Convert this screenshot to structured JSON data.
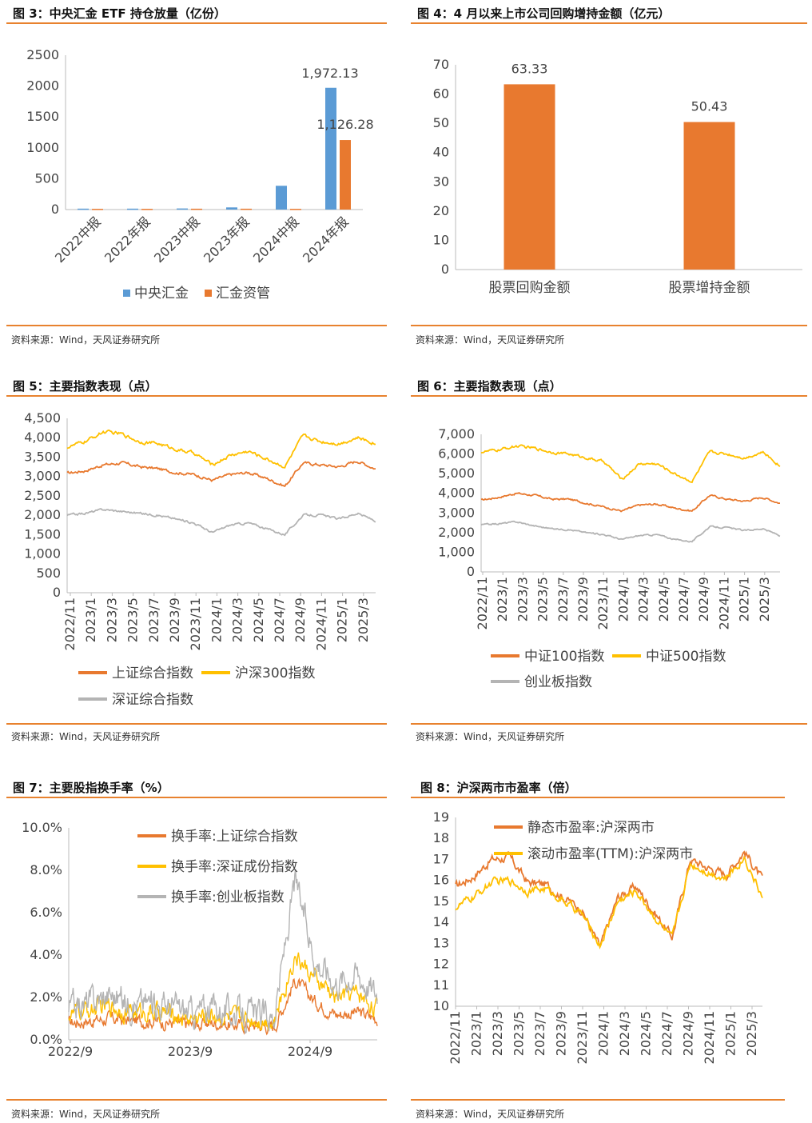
{
  "source_text": "资料来源：Wind，天风证券研究所",
  "colors": {
    "blue": "#5b9bd5",
    "orange": "#e8792f",
    "yellow": "#ffc000",
    "gray": "#b4b4b4",
    "rule": "#e8822e"
  },
  "charts": [
    {
      "id": "fig3",
      "title": "图 3：中央汇金 ETF 持仓放量（亿份）",
      "chart_data": {
        "type": "bar",
        "categories": [
          "2022中报",
          "2022年报",
          "2023中报",
          "2023年报",
          "2024中报",
          "2024年报"
        ],
        "series": [
          {
            "name": "中央汇金",
            "color": "#5b9bd5",
            "values": [
              15,
              15,
              18,
              35,
              385,
              1972.13
            ]
          },
          {
            "name": "汇金资管",
            "color": "#e8792f",
            "values": [
              12,
              12,
              14,
              14,
              12,
              1126.28
            ]
          }
        ],
        "data_labels": [
          "1,972.13",
          "1,126.28"
        ],
        "ylim": [
          0,
          2500
        ],
        "yticks": [
          "2500",
          "2000",
          "1500",
          "1000",
          "500",
          "0"
        ],
        "legend": "bottom"
      }
    },
    {
      "id": "fig4",
      "title": "图 4：4 月以来上市公司回购增持金额（亿元）",
      "chart_data": {
        "type": "bar",
        "categories": [
          "股票回购金额",
          "股票增持金额"
        ],
        "values": [
          63.33,
          50.43
        ],
        "data_labels": [
          "63.33",
          "50.43"
        ],
        "color": "#e8792f",
        "ylim": [
          0,
          70
        ],
        "yticks": [
          "70",
          "60",
          "50",
          "40",
          "30",
          "20",
          "10",
          "0"
        ]
      }
    },
    {
      "id": "fig5",
      "title": "图 5：主要指数表现（点）",
      "chart_data": {
        "type": "line",
        "xticks": [
          "2022/11",
          "2023/1",
          "2023/3",
          "2023/5",
          "2023/7",
          "2023/9",
          "2023/11",
          "2024/1",
          "2024/3",
          "2024/5",
          "2024/7",
          "2024/9",
          "2024/11",
          "2025/1",
          "2025/3"
        ],
        "ylim": [
          0,
          4500
        ],
        "yticks": [
          "4,500",
          "4,000",
          "3,500",
          "3,000",
          "2,500",
          "2,000",
          "1,500",
          "1,000",
          "500",
          "0"
        ],
        "series": [
          {
            "name": "上证综合指数",
            "color": "#e8792f",
            "anchors": [
              3080,
              3150,
              3300,
              3350,
              3250,
              3200,
              3100,
              3050,
              2900,
              3050,
              3100,
              2950,
              2750,
              3350,
              3300,
              3250,
              3400,
              3200
            ]
          },
          {
            "name": "沪深300指数",
            "color": "#ffc000",
            "anchors": [
              3750,
              3900,
              4150,
              4100,
              3900,
              3850,
              3700,
              3600,
              3300,
              3550,
              3650,
              3450,
              3250,
              4050,
              3900,
              3850,
              4000,
              3850
            ]
          },
          {
            "name": "深证综合指数",
            "color": "#b4b4b4",
            "anchors": [
              2000,
              2050,
              2150,
              2100,
              2050,
              2000,
              1900,
              1800,
              1550,
              1750,
              1800,
              1650,
              1500,
              2000,
              2000,
              1900,
              2050,
              1850
            ]
          }
        ],
        "legend": "bottom"
      }
    },
    {
      "id": "fig6",
      "title": "图 6：主要指数表现（点）",
      "chart_data": {
        "type": "line",
        "xticks": [
          "2022/11",
          "2023/1",
          "2023/3",
          "2023/5",
          "2023/7",
          "2023/9",
          "2023/11",
          "2024/1",
          "2024/3",
          "2024/5",
          "2024/7",
          "2024/9",
          "2024/11",
          "2025/1",
          "2025/3"
        ],
        "ylim": [
          0,
          7000
        ],
        "yticks": [
          "7,000",
          "6,000",
          "5,000",
          "4,000",
          "3,000",
          "2,000",
          "1,000",
          "0"
        ],
        "series": [
          {
            "name": "中证100指数",
            "color": "#e8792f",
            "anchors": [
              3650,
              3800,
              4000,
              3900,
              3700,
              3700,
              3500,
              3300,
              3100,
              3400,
              3450,
              3250,
              3100,
              3900,
              3700,
              3600,
              3800,
              3500
            ]
          },
          {
            "name": "中证500指数",
            "color": "#ffc000",
            "anchors": [
              6100,
              6200,
              6400,
              6300,
              6100,
              6000,
              5800,
              5600,
              4700,
              5500,
              5500,
              5000,
              4600,
              6100,
              6000,
              5800,
              6100,
              5400
            ]
          },
          {
            "name": "创业板指数",
            "color": "#b4b4b4",
            "anchors": [
              2400,
              2450,
              2550,
              2350,
              2200,
              2150,
              2000,
              1900,
              1650,
              1850,
              1900,
              1650,
              1550,
              2300,
              2250,
              2100,
              2200,
              1850
            ]
          }
        ],
        "legend": "bottom"
      }
    },
    {
      "id": "fig7",
      "title": "图 7：主要股指换手率（%）",
      "chart_data": {
        "type": "line",
        "xticks": [
          "2022/9",
          "2023/9",
          "2024/9"
        ],
        "ylim": [
          0,
          10
        ],
        "yticks": [
          "10.0%",
          "8.0%",
          "6.0%",
          "4.0%",
          "2.0%",
          "0.0%"
        ],
        "series": [
          {
            "name": "换手率:上证综合指数",
            "color": "#e8792f",
            "anchors": [
              0.8,
              0.9,
              1.0,
              0.9,
              0.9,
              0.8,
              0.7,
              0.8,
              0.7,
              0.7,
              0.6,
              2.8,
              1.8,
              1.2,
              1.3,
              1.0
            ]
          },
          {
            "name": "换手率:深证成份指数",
            "color": "#ffc000",
            "anchors": [
              1.2,
              1.4,
              1.6,
              1.3,
              1.3,
              1.2,
              1.0,
              1.2,
              1.0,
              1.0,
              0.9,
              4.0,
              2.8,
              2.0,
              2.2,
              1.5
            ]
          },
          {
            "name": "换手率:创业板指数",
            "color": "#b4b4b4",
            "anchors": [
              1.5,
              1.8,
              2.2,
              1.7,
              1.8,
              1.6,
              1.3,
              1.6,
              1.3,
              1.2,
              1.1,
              7.5,
              3.8,
              2.8,
              3.2,
              2.2
            ]
          }
        ],
        "legend": "top-left"
      }
    },
    {
      "id": "fig8",
      "title": "图 8：沪深两市市盈率（倍）",
      "chart_data": {
        "type": "line",
        "xticks": [
          "2022/11",
          "2023/1",
          "2023/3",
          "2023/5",
          "2023/7",
          "2023/9",
          "2023/11",
          "2024/1",
          "2024/3",
          "2024/5",
          "2024/7",
          "2024/9",
          "2024/11",
          "2025/1",
          "2025/3"
        ],
        "ylim": [
          10,
          19
        ],
        "yticks": [
          "19",
          "18",
          "17",
          "16",
          "15",
          "14",
          "13",
          "12",
          "11",
          "10"
        ],
        "series": [
          {
            "name": "静态市盈率:沪深两市",
            "color": "#e8792f",
            "anchors": [
              15.7,
              16.2,
              17.0,
              17.1,
              15.9,
              15.8,
              15.2,
              14.6,
              12.8,
              15.2,
              15.7,
              14.5,
              13.3,
              17.0,
              16.6,
              16.3,
              17.4,
              16.0
            ]
          },
          {
            "name": "滚动市盈率(TTM):沪深两市",
            "color": "#ffc000",
            "anchors": [
              14.7,
              15.2,
              15.9,
              16.0,
              15.5,
              15.6,
              15.0,
              14.4,
              12.9,
              15.0,
              15.5,
              14.3,
              13.2,
              16.8,
              16.4,
              16.1,
              17.1,
              15.2
            ]
          }
        ],
        "legend": "top-left"
      }
    }
  ]
}
